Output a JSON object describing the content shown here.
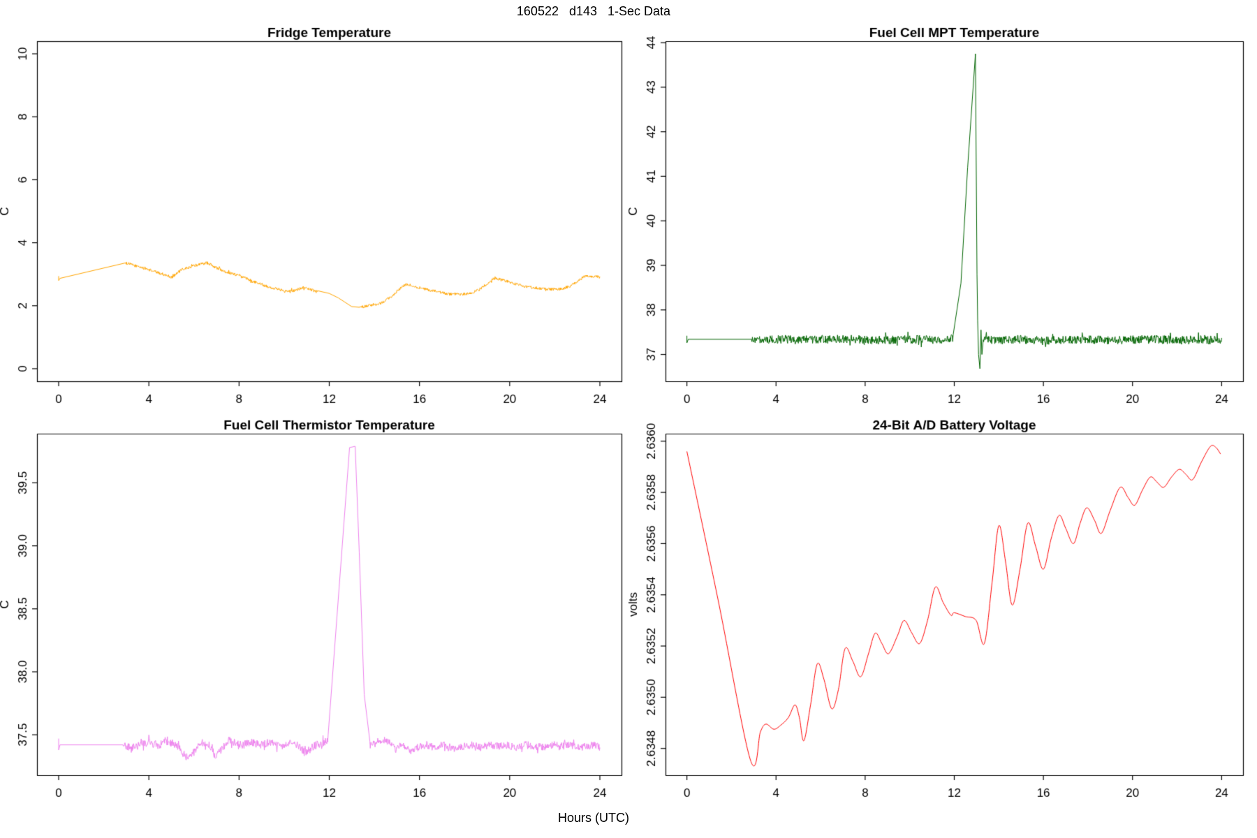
{
  "header": {
    "main_title": "160522   d143   1-Sec Data"
  },
  "footer": {
    "shared_xlabel": "Hours (UTC)"
  },
  "colors": {
    "background": "#ffffff",
    "axis": "#000000",
    "fridge": "#FFA500",
    "mpt": "#006400",
    "thermistor": "#EE82EE",
    "battery": "#FF0000"
  },
  "chart_data": [
    {
      "type": "line",
      "position": "top-left",
      "title": "Fridge Temperature",
      "ylabel": "C",
      "xlim": [
        0,
        24
      ],
      "ylim": [
        0,
        10
      ],
      "xtick_values": [
        0,
        4,
        8,
        12,
        16,
        20,
        24
      ],
      "xtick_labels": [
        "0",
        "4",
        "8",
        "12",
        "16",
        "20",
        "24"
      ],
      "ytick_values": [
        0,
        2,
        4,
        6,
        8,
        10
      ],
      "ytick_labels": [
        "0",
        "2",
        "4",
        "6",
        "8",
        "10"
      ],
      "grid": false,
      "series": [
        {
          "name": "fridge-temp",
          "color": "#FFA500",
          "smooth": false,
          "points": [
            [
              0,
              2.94
            ],
            [
              0,
              2.8
            ],
            [
              0.06,
              2.87
            ],
            [
              2.97,
              3.36
            ],
            [
              3.4,
              3.27
            ],
            [
              3.9,
              3.17
            ],
            [
              4.4,
              3.05
            ],
            [
              4.85,
              2.95
            ],
            [
              5.0,
              2.9
            ],
            [
              5.15,
              2.98
            ],
            [
              5.45,
              3.14
            ],
            [
              5.9,
              3.24
            ],
            [
              6.25,
              3.32
            ],
            [
              6.6,
              3.36
            ],
            [
              6.95,
              3.22
            ],
            [
              7.4,
              3.08
            ],
            [
              7.85,
              2.99
            ],
            [
              8.3,
              2.87
            ],
            [
              8.85,
              2.72
            ],
            [
              9.4,
              2.58
            ],
            [
              9.9,
              2.5
            ],
            [
              10.25,
              2.46
            ],
            [
              10.6,
              2.52
            ],
            [
              10.8,
              2.58
            ],
            [
              11.05,
              2.55
            ],
            [
              11.5,
              2.43
            ],
            [
              12.0,
              2.39
            ],
            [
              12.4,
              2.25
            ],
            [
              13.0,
              1.97
            ],
            [
              13.35,
              1.95
            ],
            [
              13.7,
              2.0
            ],
            [
              14.05,
              2.02
            ],
            [
              14.35,
              2.1
            ],
            [
              14.7,
              2.26
            ],
            [
              15.1,
              2.52
            ],
            [
              15.4,
              2.68
            ],
            [
              15.75,
              2.63
            ],
            [
              16.2,
              2.53
            ],
            [
              16.8,
              2.44
            ],
            [
              17.3,
              2.37
            ],
            [
              17.8,
              2.35
            ],
            [
              18.3,
              2.4
            ],
            [
              18.7,
              2.53
            ],
            [
              19.1,
              2.76
            ],
            [
              19.35,
              2.88
            ],
            [
              19.7,
              2.82
            ],
            [
              20.2,
              2.7
            ],
            [
              20.7,
              2.61
            ],
            [
              21.2,
              2.56
            ],
            [
              21.8,
              2.52
            ],
            [
              22.3,
              2.53
            ],
            [
              22.7,
              2.63
            ],
            [
              23.05,
              2.79
            ],
            [
              23.35,
              2.94
            ],
            [
              23.6,
              2.92
            ],
            [
              23.85,
              2.95
            ],
            [
              24,
              2.9
            ]
          ],
          "noise_segments": [
            [
              2.97,
              11.55,
              0.045
            ],
            [
              13.2,
              24,
              0.045
            ]
          ]
        }
      ]
    },
    {
      "type": "line",
      "position": "top-right",
      "title": "Fuel Cell MPT Temperature",
      "ylabel": "C",
      "xlim": [
        0,
        24
      ],
      "ylim": [
        36.68,
        43.75
      ],
      "xtick_values": [
        0,
        4,
        8,
        12,
        16,
        20,
        24
      ],
      "xtick_labels": [
        "0",
        "4",
        "8",
        "12",
        "16",
        "20",
        "24"
      ],
      "ytick_values": [
        37,
        38,
        39,
        40,
        41,
        42,
        43,
        44
      ],
      "ytick_labels": [
        "37",
        "38",
        "39",
        "40",
        "41",
        "42",
        "43",
        "44"
      ],
      "grid": false,
      "series": [
        {
          "name": "mpt-temp",
          "color": "#006400",
          "smooth": false,
          "points": [
            [
              0,
              37.42
            ],
            [
              0,
              37.26
            ],
            [
              0.06,
              37.34
            ],
            [
              2.9,
              37.34
            ],
            [
              4,
              37.34
            ],
            [
              5.5,
              37.33
            ],
            [
              7,
              37.35
            ],
            [
              8.5,
              37.32
            ],
            [
              10,
              37.34
            ],
            [
              11.3,
              37.33
            ],
            [
              11.95,
              37.36
            ],
            [
              12.3,
              38.6
            ],
            [
              12.6,
              41.2
            ],
            [
              12.95,
              43.75
            ],
            [
              13.02,
              38.8
            ],
            [
              13.05,
              37.75
            ],
            [
              13.09,
              37.0
            ],
            [
              13.15,
              36.68
            ],
            [
              13.2,
              37.55
            ],
            [
              13.24,
              37.0
            ],
            [
              13.3,
              37.33
            ],
            [
              14,
              37.32
            ],
            [
              15,
              37.34
            ],
            [
              16,
              37.31
            ],
            [
              17,
              37.33
            ],
            [
              18,
              37.34
            ],
            [
              19,
              37.32
            ],
            [
              20,
              37.33
            ],
            [
              21,
              37.34
            ],
            [
              22,
              37.32
            ],
            [
              23,
              37.33
            ],
            [
              24,
              37.31
            ]
          ],
          "noise_segments": [
            [
              2.9,
              11.95,
              0.095
            ],
            [
              13.3,
              24,
              0.095
            ]
          ]
        }
      ]
    },
    {
      "type": "line",
      "position": "bottom-left",
      "title": "Fuel Cell Thermistor Temperature",
      "ylabel": "C",
      "xlim": [
        0,
        24
      ],
      "ylim": [
        37.28,
        39.79
      ],
      "xtick_values": [
        0,
        4,
        8,
        12,
        16,
        20,
        24
      ],
      "xtick_labels": [
        "0",
        "4",
        "8",
        "12",
        "16",
        "20",
        "24"
      ],
      "ytick_values": [
        37.5,
        38.0,
        38.5,
        39.0,
        39.5
      ],
      "ytick_labels": [
        "37.5",
        "38.0",
        "38.5",
        "39.0",
        "39.5"
      ],
      "grid": false,
      "series": [
        {
          "name": "thermistor-temp",
          "color": "#EE82EE",
          "smooth": false,
          "points": [
            [
              0,
              37.47
            ],
            [
              0,
              37.38
            ],
            [
              0.06,
              37.42
            ],
            [
              2.85,
              37.42
            ],
            [
              3.2,
              37.39
            ],
            [
              3.6,
              37.42
            ],
            [
              4.0,
              37.44
            ],
            [
              4.4,
              37.42
            ],
            [
              4.8,
              37.44
            ],
            [
              5.1,
              37.43
            ],
            [
              5.45,
              37.37
            ],
            [
              5.7,
              37.31
            ],
            [
              6.0,
              37.36
            ],
            [
              6.35,
              37.44
            ],
            [
              6.65,
              37.42
            ],
            [
              6.95,
              37.33
            ],
            [
              7.25,
              37.39
            ],
            [
              7.55,
              37.46
            ],
            [
              7.85,
              37.43
            ],
            [
              8.2,
              37.42
            ],
            [
              8.6,
              37.44
            ],
            [
              9.0,
              37.42
            ],
            [
              9.4,
              37.44
            ],
            [
              9.8,
              37.41
            ],
            [
              10.2,
              37.43
            ],
            [
              10.6,
              37.42
            ],
            [
              10.95,
              37.36
            ],
            [
              11.3,
              37.41
            ],
            [
              11.6,
              37.43
            ],
            [
              11.95,
              37.45
            ],
            [
              12.9,
              39.78
            ],
            [
              13.15,
              39.79
            ],
            [
              13.33,
              38.95
            ],
            [
              13.55,
              37.82
            ],
            [
              13.8,
              37.45
            ],
            [
              14.05,
              37.43
            ],
            [
              14.35,
              37.47
            ],
            [
              14.65,
              37.44
            ],
            [
              14.95,
              37.38
            ],
            [
              15.25,
              37.43
            ],
            [
              15.6,
              37.37
            ],
            [
              15.95,
              37.4
            ],
            [
              16.3,
              37.42
            ],
            [
              16.7,
              37.4
            ],
            [
              17.1,
              37.42
            ],
            [
              17.5,
              37.39
            ],
            [
              17.9,
              37.41
            ],
            [
              18.3,
              37.42
            ],
            [
              18.7,
              37.4
            ],
            [
              19.1,
              37.42
            ],
            [
              19.5,
              37.41
            ],
            [
              19.9,
              37.42
            ],
            [
              20.3,
              37.4
            ],
            [
              20.7,
              37.42
            ],
            [
              21.1,
              37.41
            ],
            [
              21.5,
              37.4
            ],
            [
              21.9,
              37.42
            ],
            [
              22.3,
              37.41
            ],
            [
              22.7,
              37.42
            ],
            [
              23.1,
              37.4
            ],
            [
              23.5,
              37.41
            ],
            [
              23.75,
              37.42
            ],
            [
              24,
              37.4
            ]
          ],
          "noise_segments": [
            [
              2.85,
              11.95,
              0.032
            ],
            [
              13.8,
              24,
              0.03
            ]
          ]
        }
      ]
    },
    {
      "type": "line",
      "position": "bottom-right",
      "title": "24-Bit A/D Battery Voltage",
      "ylabel": "volts",
      "xlim": [
        0,
        24
      ],
      "ylim": [
        2.634745,
        2.63598
      ],
      "xtick_values": [
        0,
        4,
        8,
        12,
        16,
        20,
        24
      ],
      "xtick_labels": [
        "0",
        "4",
        "8",
        "12",
        "16",
        "20",
        "24"
      ],
      "ytick_values": [
        2.6348,
        2.635,
        2.6352,
        2.6354,
        2.6356,
        2.6358,
        2.636
      ],
      "ytick_labels": [
        "2.6348",
        "2.6350",
        "2.6352",
        "2.6354",
        "2.6356",
        "2.6358",
        "2.6360"
      ],
      "grid": false,
      "series": [
        {
          "name": "battery-voltage",
          "color": "#FF0000",
          "smooth": true,
          "points": [
            [
              0,
              2.63596
            ],
            [
              1.4,
              2.63538
            ],
            [
              2.85,
              2.634755
            ],
            [
              3.3,
              2.634865
            ],
            [
              3.55,
              2.634895
            ],
            [
              3.9,
              2.634875
            ],
            [
              4.2,
              2.63489
            ],
            [
              4.55,
              2.63492
            ],
            [
              4.85,
              2.63497
            ],
            [
              5.05,
              2.63492
            ],
            [
              5.25,
              2.63483
            ],
            [
              5.55,
              2.63497
            ],
            [
              5.85,
              2.63513
            ],
            [
              6.15,
              2.63507
            ],
            [
              6.5,
              2.634955
            ],
            [
              6.8,
              2.63503
            ],
            [
              7.1,
              2.63519
            ],
            [
              7.45,
              2.63514
            ],
            [
              7.8,
              2.63508
            ],
            [
              8.15,
              2.63517
            ],
            [
              8.45,
              2.63525
            ],
            [
              8.75,
              2.63521
            ],
            [
              9.05,
              2.63517
            ],
            [
              9.45,
              2.63524
            ],
            [
              9.75,
              2.6353
            ],
            [
              10.1,
              2.63525
            ],
            [
              10.45,
              2.63521
            ],
            [
              10.8,
              2.6353
            ],
            [
              11.15,
              2.63543
            ],
            [
              11.5,
              2.63537
            ],
            [
              11.85,
              2.63532
            ],
            [
              12.0,
              2.63533
            ],
            [
              12.5,
              2.635315
            ],
            [
              12.98,
              2.6353
            ],
            [
              13.35,
              2.63521
            ],
            [
              13.7,
              2.63545
            ],
            [
              14.0,
              2.63567
            ],
            [
              14.3,
              2.63553
            ],
            [
              14.6,
              2.63536
            ],
            [
              14.95,
              2.6355
            ],
            [
              15.3,
              2.63568
            ],
            [
              15.65,
              2.63559
            ],
            [
              16.0,
              2.6355
            ],
            [
              16.35,
              2.63562
            ],
            [
              16.7,
              2.63571
            ],
            [
              17.0,
              2.63566
            ],
            [
              17.35,
              2.6356
            ],
            [
              17.65,
              2.63568
            ],
            [
              17.95,
              2.63574
            ],
            [
              18.3,
              2.63569
            ],
            [
              18.6,
              2.63564
            ],
            [
              19.0,
              2.63573
            ],
            [
              19.45,
              2.63582
            ],
            [
              19.8,
              2.63578
            ],
            [
              20.1,
              2.63575
            ],
            [
              20.45,
              2.63581
            ],
            [
              20.8,
              2.63586
            ],
            [
              21.1,
              2.63584
            ],
            [
              21.4,
              2.63582
            ],
            [
              21.75,
              2.63586
            ],
            [
              22.1,
              2.63589
            ],
            [
              22.4,
              2.63587
            ],
            [
              22.7,
              2.63585
            ],
            [
              23.1,
              2.63592
            ],
            [
              23.5,
              2.63598
            ],
            [
              23.75,
              2.635975
            ],
            [
              23.95,
              2.63595
            ]
          ],
          "noise_segments": []
        }
      ]
    }
  ]
}
